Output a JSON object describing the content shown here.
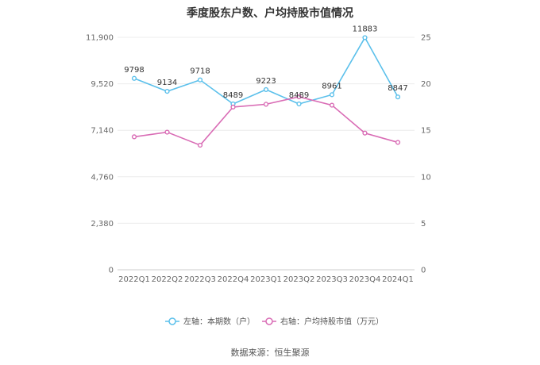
{
  "chart_data": {
    "type": "line",
    "title": "季度股东户数、户均持股市值情况",
    "categories": [
      "2022Q1",
      "2022Q2",
      "2022Q3",
      "2022Q4",
      "2023Q1",
      "2023Q2",
      "2023Q3",
      "2023Q4",
      "2024Q1"
    ],
    "left_axis": {
      "ticks": [
        "0",
        "2,380",
        "4,760",
        "7,140",
        "9,520",
        "11,900"
      ],
      "ylim": [
        0,
        11900
      ]
    },
    "right_axis": {
      "ticks": [
        "0",
        "5",
        "10",
        "15",
        "20",
        "25"
      ],
      "ylim": [
        0,
        25
      ]
    },
    "series": [
      {
        "name": "左轴：本期数（户）",
        "axis": "left",
        "color": "#5bc0eb",
        "values": [
          9798,
          9134,
          9718,
          8489,
          9223,
          8489,
          8961,
          11883,
          8847
        ],
        "labels": [
          "9798",
          "9134",
          "9718",
          "8489",
          "9223",
          "8489",
          "8961",
          "11883",
          "8847"
        ]
      },
      {
        "name": "右轴：户均持股市值（万元）",
        "axis": "right",
        "color": "#d96cb5",
        "values": [
          14.3,
          14.8,
          13.4,
          17.5,
          17.8,
          18.6,
          17.7,
          14.7,
          13.7
        ]
      }
    ],
    "grid": true,
    "legend_position": "bottom"
  },
  "source_text": "数据来源：恒生聚源"
}
